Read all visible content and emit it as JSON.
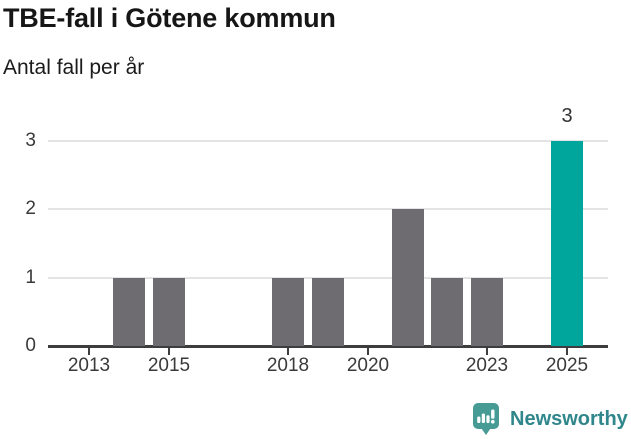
{
  "header": {
    "title": "TBE-fall i Götene kommun",
    "subtitle": "Antal fall per år"
  },
  "chart_data": {
    "type": "bar",
    "title": "TBE-fall i Götene kommun",
    "subtitle": "Antal fall per år",
    "ylabel": "Antal fall per år",
    "xlabel": "",
    "categories": [
      2013,
      2014,
      2015,
      2016,
      2017,
      2018,
      2019,
      2020,
      2021,
      2022,
      2023,
      2024,
      2025
    ],
    "values": [
      0,
      1,
      1,
      0,
      0,
      1,
      1,
      0,
      2,
      1,
      1,
      0,
      3
    ],
    "highlight_category": 2025,
    "data_labels": [
      {
        "category": 2025,
        "label": "3"
      }
    ],
    "xticks": [
      2013,
      2015,
      2018,
      2020,
      2023,
      2025
    ],
    "yticks": [
      0,
      1,
      2,
      3
    ],
    "ylim": [
      0,
      3
    ],
    "grid": "horizontal",
    "legend_position": "none",
    "colors": {
      "bar": "#6f6c71",
      "highlight": "#00a69c",
      "gridline": "#e4e4e4",
      "axis": "#3d3d3d",
      "tick_text": "#3a3a3a"
    }
  },
  "footer": {
    "brand_label": "Newsworthy",
    "logo_icon": "speech-bubble-bar-chart-icon",
    "colors": {
      "icon": "#479b95",
      "text": "#2f868b"
    }
  }
}
